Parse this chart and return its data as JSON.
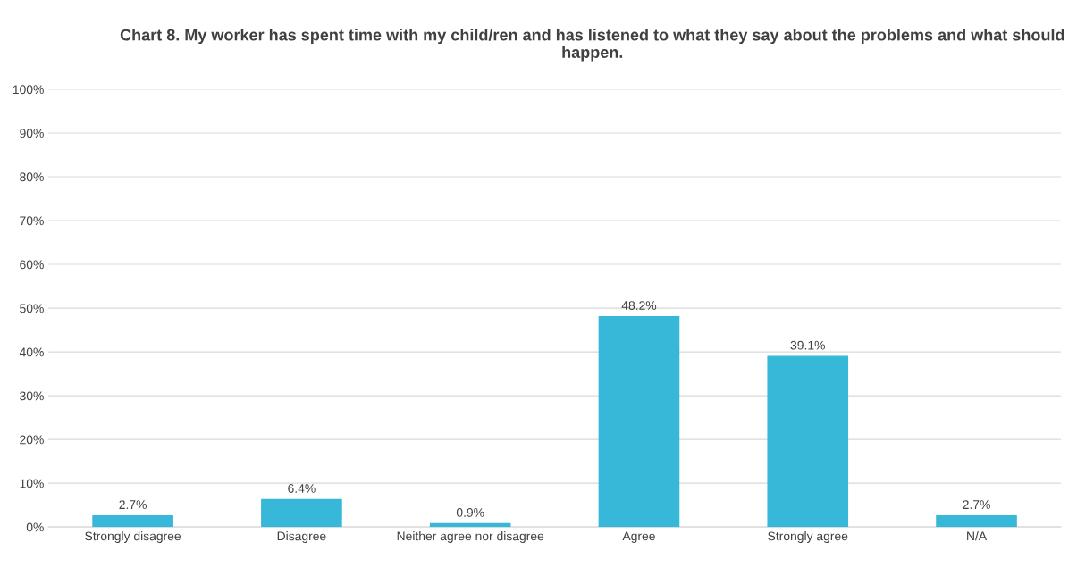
{
  "chart_data": {
    "type": "bar",
    "title": "Chart 8. My worker has spent time with my child/ren and has listened to what they say about the problems and what should happen.",
    "categories": [
      "Strongly disagree",
      "Disagree",
      "Neither agree nor disagree",
      "Agree",
      "Strongly agree",
      "N/A"
    ],
    "values": [
      2.7,
      6.4,
      0.9,
      48.2,
      39.1,
      2.7
    ],
    "value_labels": [
      "2.7%",
      "6.4%",
      "0.9%",
      "48.2%",
      "39.1%",
      "2.7%"
    ],
    "color": "#38b8d8",
    "ylim": [
      0,
      100
    ],
    "yticks": [
      {
        "value": 0,
        "label": "0%"
      },
      {
        "value": 10,
        "label": "10%"
      },
      {
        "value": 20,
        "label": "20%"
      },
      {
        "value": 30,
        "label": "30%"
      },
      {
        "value": 40,
        "label": "40%"
      },
      {
        "value": 50,
        "label": "50%"
      },
      {
        "value": 60,
        "label": "60%"
      },
      {
        "value": 70,
        "label": "70%"
      },
      {
        "value": 80,
        "label": "80%"
      },
      {
        "value": 90,
        "label": "90%"
      },
      {
        "value": 100,
        "label": "100%"
      }
    ],
    "grid": "y",
    "legend": false
  }
}
